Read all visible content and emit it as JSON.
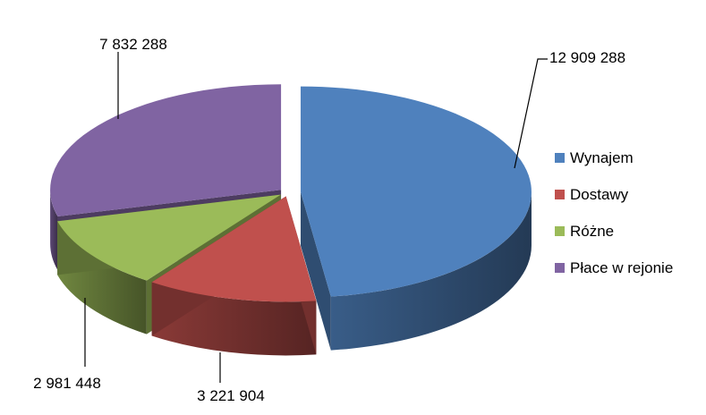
{
  "chart_data": {
    "type": "pie",
    "variant": "3d-exploded",
    "categories": [
      "Wynajem",
      "Dostawy",
      "Różne",
      "Płace w rejonie"
    ],
    "values": [
      12909288,
      3221904,
      2981448,
      7832288
    ],
    "data_labels": [
      "12 909 288",
      "3 221 904",
      "2 981 448",
      "7 832 288"
    ],
    "colors": [
      "#4F81BD",
      "#C0504D",
      "#9BBB59",
      "#8064A2"
    ],
    "legend_position": "right",
    "title": ""
  }
}
